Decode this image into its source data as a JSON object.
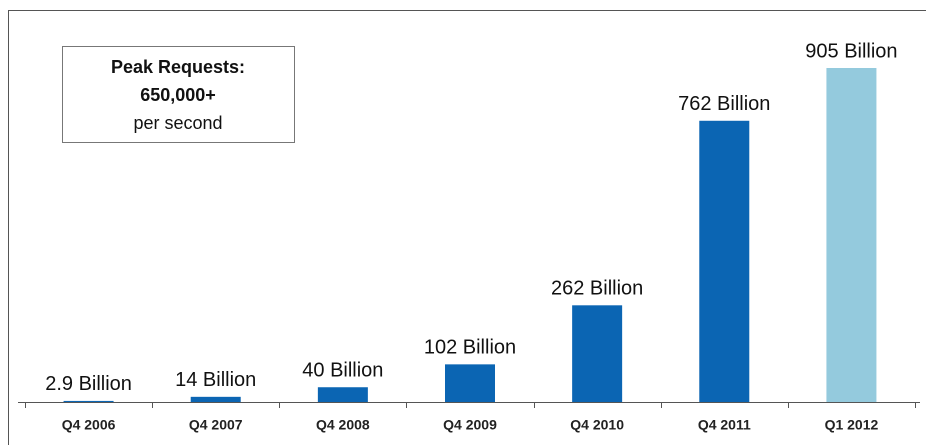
{
  "chart_data": {
    "type": "bar",
    "categories": [
      "Q4 2006",
      "Q4 2007",
      "Q4 2008",
      "Q4 2009",
      "Q4 2010",
      "Q4 2011",
      "Q1 2012"
    ],
    "values": [
      2.9,
      14,
      40,
      102,
      262,
      762,
      905
    ],
    "value_labels": [
      "2.9 Billion",
      "14 Billion",
      "40 Billion",
      "102 Billion",
      "262 Billion",
      "762 Billion",
      "905 Billion"
    ],
    "colors": [
      "#0b65b3",
      "#0b65b3",
      "#0b65b3",
      "#0b65b3",
      "#0b65b3",
      "#0b65b3",
      "#94cadd"
    ],
    "annotation": [
      "Peak Requests:",
      "650,000+",
      "per second"
    ]
  }
}
